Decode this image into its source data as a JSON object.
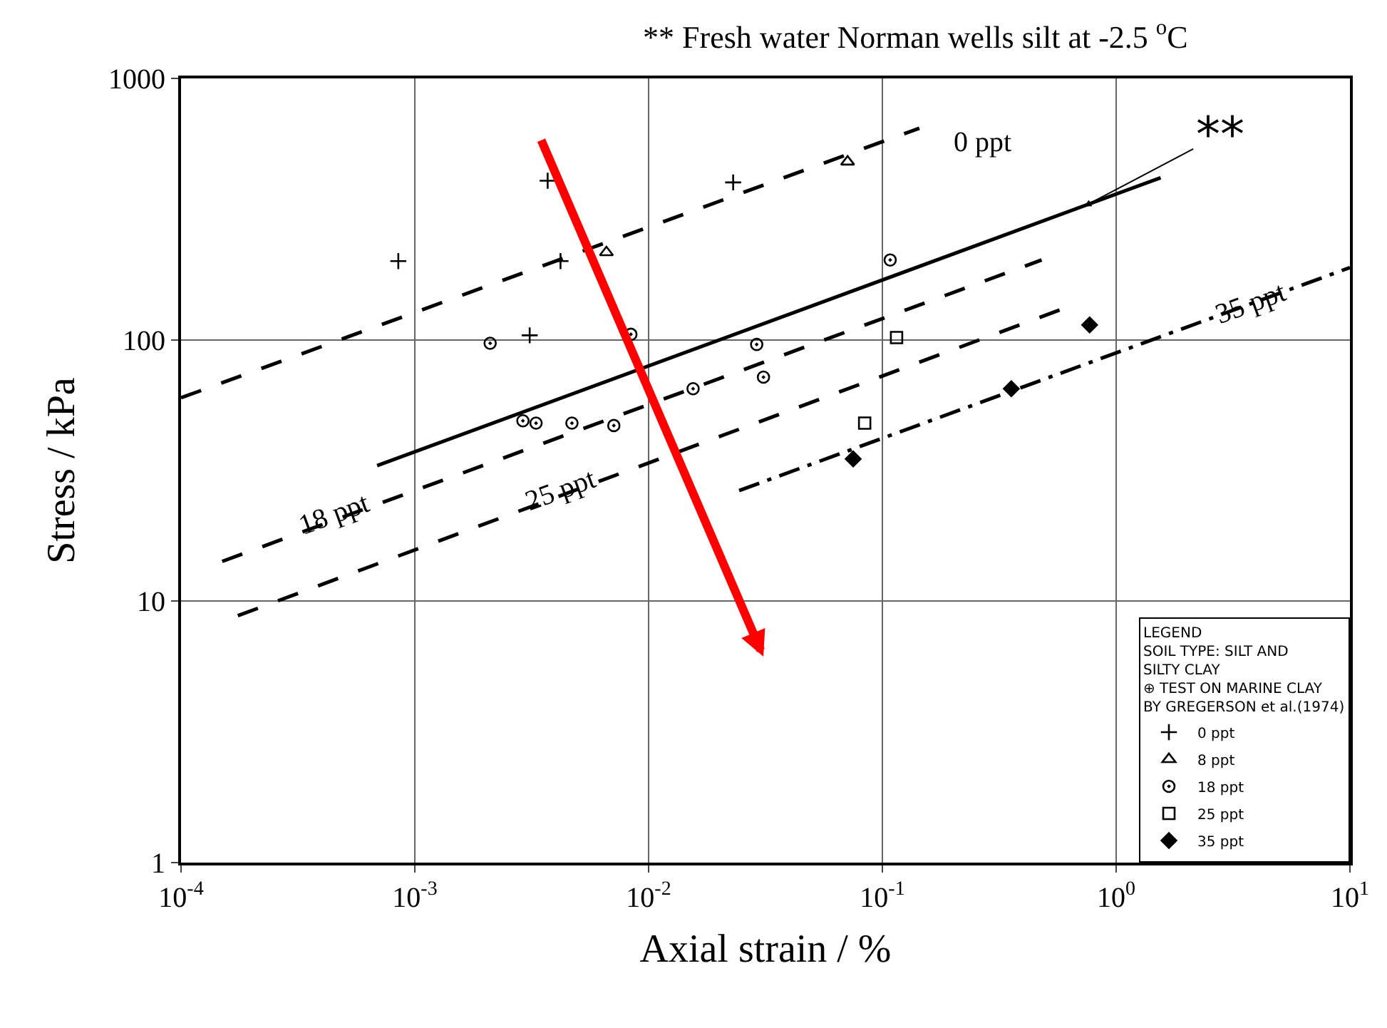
{
  "chart_data": {
    "type": "scatter",
    "title": "** Fresh water Norman wells silt at -2.5 $^{o}$C",
    "xlabel": "Axial strain / %",
    "ylabel": "Stress / kPa",
    "log": "xy",
    "grid": true,
    "legend": "bottom right",
    "legend_title": "LEGEND\nSOIL TYPE: SILT AND\nSILTY CLAY\n⊕ TEST ON MARINE CLAY\nBY GREGERSON et al.(1974)",
    "xlim": [
      0.0001,
      10
    ],
    "ylim": [
      1,
      1000
    ],
    "xticks": [
      {
        "value": 0.0001,
        "label": "10$^{-4}$"
      },
      {
        "value": 0.001,
        "label": "10$^{-3}$"
      },
      {
        "value": 0.01,
        "label": "10$^{-2}$"
      },
      {
        "value": 0.1,
        "label": "10$^{-1}$"
      },
      {
        "value": 1,
        "label": "10$^{0}$"
      },
      {
        "value": 10,
        "label": "10$^{1}$"
      }
    ],
    "yticks": [
      1,
      10,
      100,
      1000
    ],
    "series": [
      {
        "name": "0 ppt",
        "marker": "cross",
        "color": "#000000",
        "x": [
          0.00085,
          0.0031,
          0.0037,
          0.0042,
          0.023
        ],
        "values": [
          200,
          104,
          406,
          200,
          400
        ]
      },
      {
        "name": "8 ppt",
        "marker": "triangle",
        "color": "#000000",
        "x": [
          0.0066,
          0.071
        ],
        "values": [
          216,
          480
        ]
      },
      {
        "name": "18 ppt",
        "marker": "circle",
        "color": "#000000",
        "x": [
          0.0021,
          0.0084,
          0.0029,
          0.0033,
          0.0047,
          0.0071,
          0.0155,
          0.029,
          0.031,
          0.108
        ],
        "values": [
          97,
          105,
          49,
          48,
          48,
          47,
          65,
          96,
          72,
          202
        ]
      },
      {
        "name": "25 ppt",
        "marker": "square",
        "color": "#000000",
        "x": [
          0.115,
          0.084
        ],
        "values": [
          102,
          48
        ]
      },
      {
        "name": "35 ppt",
        "marker": "diamond",
        "color": "#000000",
        "x": [
          0.075,
          0.356,
          0.77
        ],
        "values": [
          35,
          65,
          114
        ]
      },
      {
        "type": "line",
        "line_style": "dashed",
        "color": "#000000",
        "x": [
          0.0001,
          0.144
        ],
        "values": [
          60,
          645
        ]
      },
      {
        "type": "line",
        "line_style": "solid",
        "color": "#000000",
        "x": [
          0.00069,
          1.55
        ],
        "values": [
          33,
          417
        ]
      },
      {
        "type": "line",
        "line_style": "dashed",
        "color": "#000000",
        "x": [
          0.00015,
          0.48
        ],
        "values": [
          14.2,
          202
        ]
      },
      {
        "type": "line",
        "line_style": "dashed",
        "color": "#000000",
        "x": [
          0.000175,
          0.6
        ],
        "values": [
          8.8,
          132
        ]
      },
      {
        "type": "line",
        "line_style": "dotted",
        "color": "#000000",
        "x": [
          0.0244,
          10
        ],
        "values": [
          26.5,
          189
        ]
      }
    ],
    "annotations": [
      {
        "text": "0 ppt",
        "x": 0.144,
        "y": 645
      },
      {
        "text": "18 ppt",
        "x": 0.00045,
        "y": 21.5
      },
      {
        "text": "25 ppt",
        "x": 0.0042,
        "y": 26.5
      },
      {
        "text": "35 ppt",
        "x": 3.76,
        "y": 138
      },
      {
        "text": "**",
        "x": 0.73,
        "y": 324
      }
    ]
  }
}
